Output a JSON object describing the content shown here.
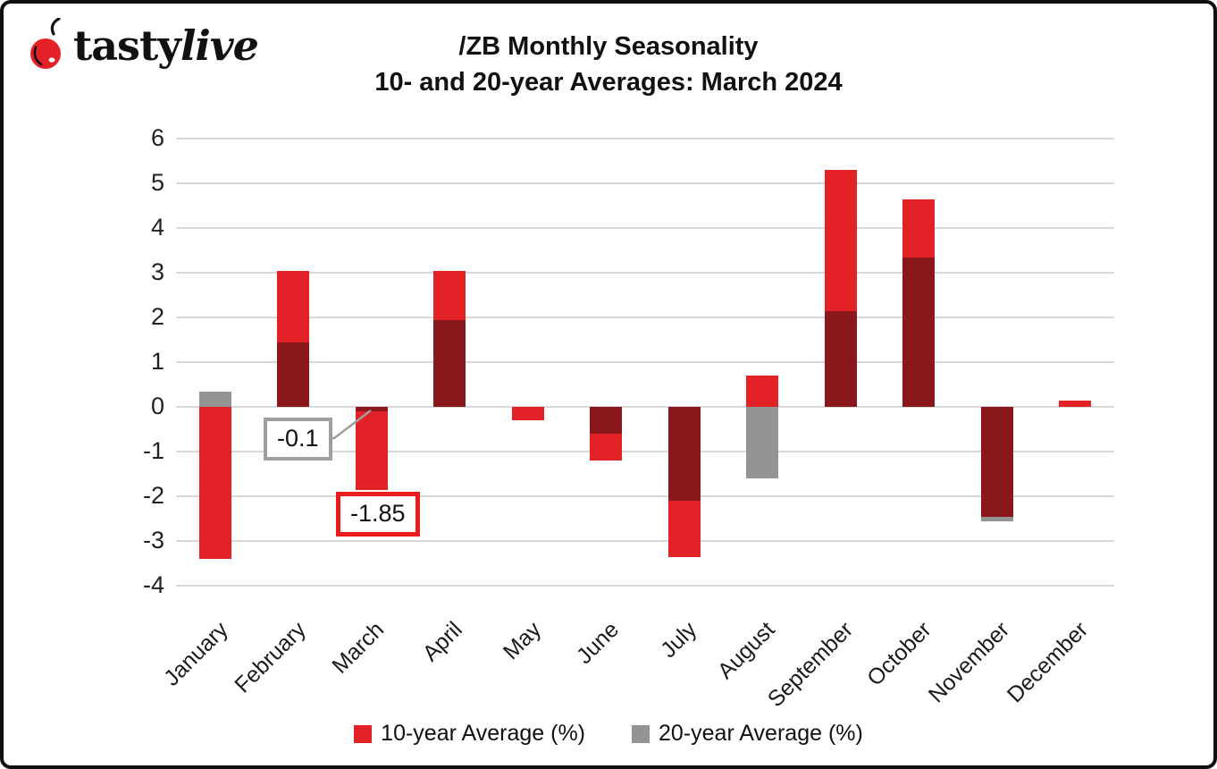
{
  "logo": {
    "brand_first": "tasty",
    "brand_second": "live",
    "cherry_color": "#e32227"
  },
  "title": {
    "line1": "/ZB Monthly Seasonality",
    "line2": "10- and 20-year Averages: March 2024"
  },
  "chart_data": {
    "type": "bar",
    "title": "/ZB Monthly Seasonality 10- and 20-year Averages: March 2024",
    "categories": [
      "January",
      "February",
      "March",
      "April",
      "May",
      "June",
      "July",
      "August",
      "September",
      "October",
      "November",
      "December"
    ],
    "series": [
      {
        "name": "10-year Average (%)",
        "color": "#e32227",
        "values": [
          -3.4,
          3.05,
          -1.85,
          3.05,
          -0.3,
          -1.2,
          -3.35,
          0.7,
          5.3,
          4.65,
          -2.45,
          0.15
        ]
      },
      {
        "name": "20-year Average (%)",
        "color": "#949494",
        "values": [
          0.35,
          1.45,
          -0.1,
          1.95,
          0,
          -0.6,
          -2.1,
          -1.6,
          2.15,
          3.35,
          -2.55,
          0
        ]
      }
    ],
    "overlap_color": "#8a171c",
    "ylim": [
      -4,
      6
    ],
    "yticks": [
      6,
      5,
      4,
      3,
      2,
      1,
      0,
      -1,
      -2,
      -3,
      -4
    ],
    "grid": true,
    "gridline_color": "#d9d9d9",
    "legend_position": "bottom",
    "annotations": [
      {
        "text": "-0.1",
        "refers_to": "March 20-year Average",
        "border_color": "#9e9e9e"
      },
      {
        "text": "-1.85",
        "refers_to": "March 10-year Average",
        "border_color": "#ec1c1c"
      }
    ]
  }
}
